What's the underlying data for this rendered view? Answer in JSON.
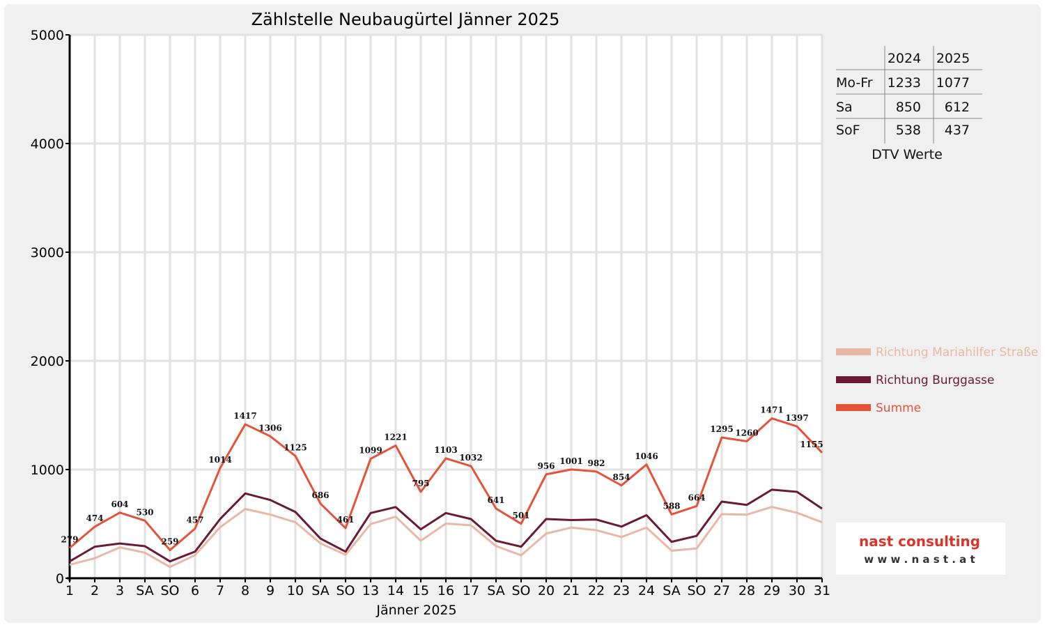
{
  "chart_data": {
    "type": "line",
    "title": "Zählstelle Neubaugürtel Jänner 2025",
    "xlabel": "Jänner 2025",
    "ylabel": "",
    "ylim": [
      0,
      5000
    ],
    "yticks": [
      0,
      1000,
      2000,
      3000,
      4000,
      5000
    ],
    "grid": true,
    "legend_position": "right",
    "categories": [
      "1",
      "2",
      "3",
      "SA",
      "SO",
      "6",
      "7",
      "8",
      "9",
      "10",
      "SA",
      "SO",
      "13",
      "14",
      "15",
      "16",
      "17",
      "SA",
      "SO",
      "20",
      "21",
      "22",
      "23",
      "24",
      "SA",
      "SO",
      "27",
      "28",
      "29",
      "30",
      "31"
    ],
    "holiday_or_sunday": [
      true,
      false,
      false,
      false,
      true,
      true,
      false,
      false,
      false,
      false,
      false,
      true,
      false,
      false,
      false,
      false,
      false,
      false,
      true,
      false,
      false,
      false,
      false,
      false,
      false,
      true,
      false,
      false,
      false,
      false,
      false
    ],
    "series": [
      {
        "name": "Richtung Mariahilfer Straße",
        "color": "#e8b8a4",
        "values": [
          124,
          184,
          284,
          235,
          104,
          212,
          469,
          637,
          586,
          515,
          321,
          216,
          499,
          566,
          345,
          503,
          487,
          296,
          211,
          411,
          466,
          442,
          379,
          466,
          253,
          274,
          590,
          585,
          656,
          602,
          515
        ]
      },
      {
        "name": "Richtung Burggasse",
        "color": "#6b1a35",
        "values": [
          155,
          290,
          320,
          295,
          155,
          245,
          545,
          780,
          720,
          610,
          365,
          245,
          600,
          655,
          450,
          600,
          545,
          345,
          290,
          545,
          535,
          540,
          475,
          580,
          335,
          390,
          705,
          675,
          815,
          795,
          640
        ]
      },
      {
        "name": "Summe",
        "color": "#e5533a",
        "labels": true,
        "values": [
          279,
          474,
          604,
          530,
          259,
          457,
          1014,
          1417,
          1306,
          1125,
          686,
          461,
          1099,
          1221,
          795,
          1103,
          1032,
          641,
          501,
          956,
          1001,
          982,
          854,
          1046,
          588,
          664,
          1295,
          1260,
          1471,
          1397,
          1155
        ]
      }
    ]
  },
  "dtv_table": {
    "caption": "DTV Werte",
    "columns": [
      "2024",
      "2025"
    ],
    "rows": [
      {
        "label": "Mo-Fr",
        "values": [
          "1233",
          "1077"
        ]
      },
      {
        "label": "Sa",
        "values": [
          "850",
          "612"
        ]
      },
      {
        "label": "SoF",
        "values": [
          "538",
          "437"
        ]
      }
    ]
  },
  "logo": {
    "name": "nast consulting",
    "url_text": "w w w . n a s t . a t"
  }
}
